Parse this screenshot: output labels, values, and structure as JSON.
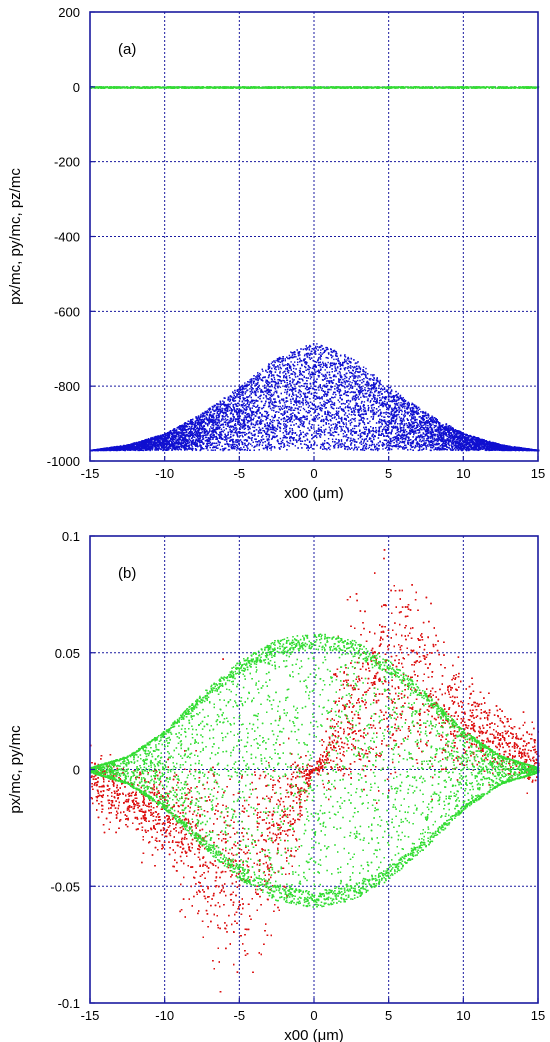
{
  "chart_data": [
    {
      "type": "scatter",
      "panel_label": "(a)",
      "xlabel": "x00 (μm)",
      "ylabel": "px/mc, py/mc, pz/mc",
      "xlim": [
        -15,
        15
      ],
      "ylim": [
        -1000,
        200
      ],
      "xticks": [
        -15,
        -10,
        -5,
        0,
        5,
        10,
        15
      ],
      "yticks": [
        -1000,
        -800,
        -600,
        -400,
        -200,
        0,
        200
      ],
      "grid": true,
      "colors": {
        "axes": "#1a1aa0",
        "grid": "#1a1aa0"
      },
      "series": [
        {
          "color": "#1010d0",
          "shape": "filled bell-shaped band",
          "x_range": [
            -15,
            15
          ],
          "lower_y": -970,
          "upper_y_at_x": [
            [
              -15,
              -970
            ],
            [
              -12.5,
              -955
            ],
            [
              -10,
              -925
            ],
            [
              -7.5,
              -870
            ],
            [
              -5,
              -800
            ],
            [
              -2.5,
              -720
            ],
            [
              0,
              -682
            ],
            [
              2.5,
              -720
            ],
            [
              5,
              -800
            ],
            [
              7.5,
              -870
            ],
            [
              10,
              -925
            ],
            [
              12.5,
              -955
            ],
            [
              15,
              -970
            ]
          ],
          "points": 14000
        },
        {
          "color": "#33dd33",
          "shape": "flat line",
          "x_range": [
            -15,
            15
          ],
          "y": 0,
          "points": 2000
        }
      ]
    },
    {
      "type": "scatter",
      "panel_label": "(b)",
      "xlabel": "x00 (μm)",
      "ylabel": "px/mc, py/mc",
      "xlim": [
        -15,
        15
      ],
      "ylim": [
        -0.1,
        0.1
      ],
      "xticks": [
        -15,
        -10,
        -5,
        0,
        5,
        10,
        15
      ],
      "yticks": [
        -0.1,
        -0.05,
        0,
        0.05,
        0.1
      ],
      "grid": true,
      "colors": {
        "axes": "#1a1aa0",
        "grid": "#1a1aa0"
      },
      "series": [
        {
          "color": "#dd1111",
          "shape": "antisymmetric lobes (negative left, positive right)",
          "x_range": [
            -15,
            15
          ],
          "peak_right": [
            5,
            0.075
          ],
          "peak_left": [
            -5,
            -0.07
          ],
          "points": 9000
        },
        {
          "color": "#33dd33",
          "shape": "symmetric lens envelope",
          "x_range": [
            -15,
            15
          ],
          "envelope_y_at_x": [
            [
              -15,
              0.001
            ],
            [
              -12.5,
              0.006
            ],
            [
              -10,
              0.017
            ],
            [
              -7.5,
              0.033
            ],
            [
              -5,
              0.047
            ],
            [
              -2.5,
              0.056
            ],
            [
              0,
              0.059
            ],
            [
              2.5,
              0.056
            ],
            [
              5,
              0.047
            ],
            [
              7.5,
              0.033
            ],
            [
              10,
              0.017
            ],
            [
              12.5,
              0.006
            ],
            [
              15,
              0.001
            ]
          ],
          "points": 12000
        }
      ]
    }
  ],
  "tick_labels": {
    "a_y": [
      "200",
      "0",
      "-200",
      "-400",
      "-600",
      "-800",
      "-1000"
    ],
    "a_x": [
      "-15",
      "-10",
      "-5",
      "0",
      "5",
      "10",
      "15"
    ],
    "b_y": [
      "0.1",
      "0.05",
      "0",
      "-0.05",
      "-0.1"
    ],
    "b_x": [
      "-15",
      "-10",
      "-5",
      "0",
      "5",
      "10",
      "15"
    ]
  }
}
